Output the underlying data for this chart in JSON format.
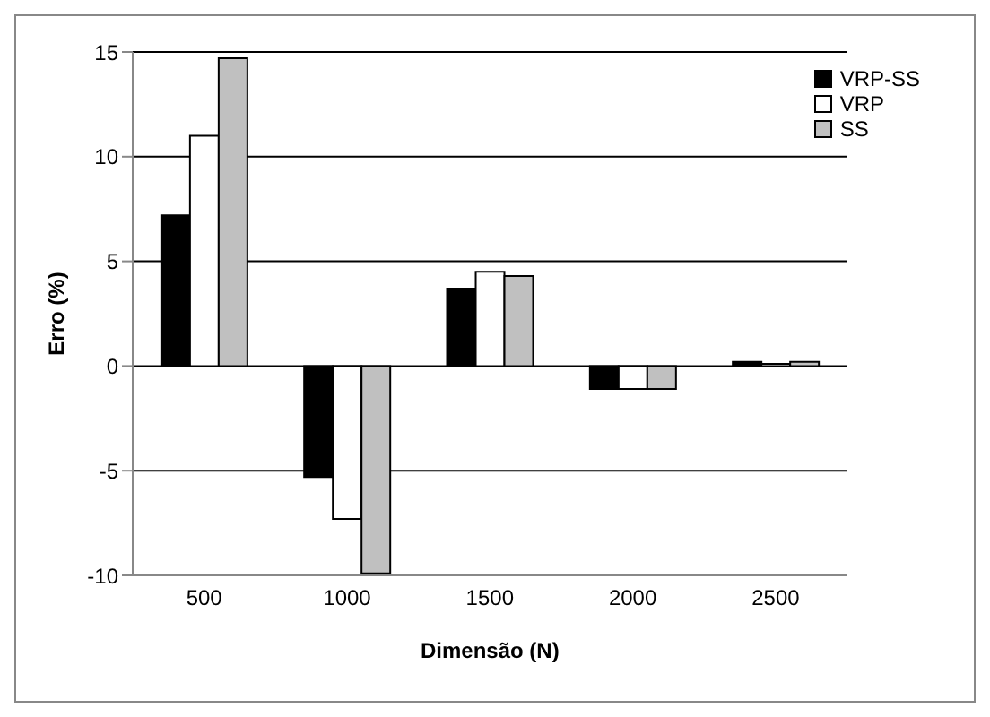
{
  "chart_data": {
    "type": "bar",
    "xlabel": "Dimensão (N)",
    "ylabel": "Erro (%)",
    "categories": [
      "500",
      "1000",
      "1500",
      "2000",
      "2500"
    ],
    "series": [
      {
        "name": "VRP-SS",
        "color": "#000000",
        "values": [
          7.2,
          -5.3,
          3.7,
          -1.1,
          0.2
        ]
      },
      {
        "name": "VRP",
        "color": "#ffffff",
        "values": [
          11.0,
          -7.3,
          4.5,
          -1.1,
          0.1
        ]
      },
      {
        "name": "SS",
        "color": "#c0c0c0",
        "values": [
          14.7,
          -9.9,
          4.3,
          -1.1,
          0.2
        ]
      }
    ],
    "ylim": [
      -10,
      15
    ],
    "yticks": [
      -10,
      -5,
      0,
      5,
      10,
      15
    ],
    "grid": "y",
    "legend": "top right"
  }
}
